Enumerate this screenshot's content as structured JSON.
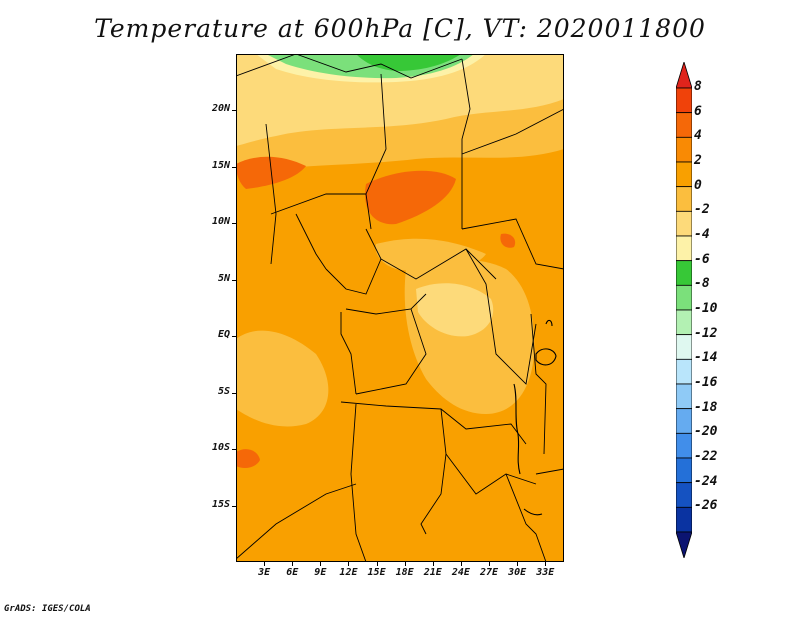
{
  "title": "Temperature at 600hPa [C], VT: 2020011800",
  "credit": "GrADS: IGES/COLA",
  "map": {
    "lon_range": [
      0,
      35
    ],
    "lat_range": [
      -20,
      25
    ],
    "y_ticks": [
      {
        "lat": 20,
        "label": "20N"
      },
      {
        "lat": 15,
        "label": "15N"
      },
      {
        "lat": 10,
        "label": "10N"
      },
      {
        "lat": 5,
        "label": "5N"
      },
      {
        "lat": 0,
        "label": "EQ"
      },
      {
        "lat": -5,
        "label": "5S"
      },
      {
        "lat": -10,
        "label": "10S"
      },
      {
        "lat": -15,
        "label": "15S"
      }
    ],
    "x_ticks": [
      {
        "lon": 3,
        "label": "3E"
      },
      {
        "lon": 6,
        "label": "6E"
      },
      {
        "lon": 9,
        "label": "9E"
      },
      {
        "lon": 12,
        "label": "12E"
      },
      {
        "lon": 15,
        "label": "15E"
      },
      {
        "lon": 18,
        "label": "18E"
      },
      {
        "lon": 21,
        "label": "21E"
      },
      {
        "lon": 24,
        "label": "24E"
      },
      {
        "lon": 27,
        "label": "27E"
      },
      {
        "lon": 30,
        "label": "30E"
      },
      {
        "lon": 33,
        "label": "33E"
      }
    ],
    "colors": {
      "c2to4": "#f9a000",
      "c0to2": "#fbbe3e",
      "cm2to0": "#fdda7a",
      "cm4tom2": "#fdf2a8",
      "cm6tom4": "#37c837",
      "cm8tom6": "#7be07b",
      "c4to6": "#f56808",
      "c6to8": "#e83c14"
    }
  },
  "colorbar": {
    "levels": [
      {
        "label": "8"
      },
      {
        "label": "6"
      },
      {
        "label": "4"
      },
      {
        "label": "2"
      },
      {
        "label": "0"
      },
      {
        "label": "-2"
      },
      {
        "label": "-4"
      },
      {
        "label": "-6"
      },
      {
        "label": "-8"
      },
      {
        "label": "-10"
      },
      {
        "label": "-12"
      },
      {
        "label": "-14"
      },
      {
        "label": "-16"
      },
      {
        "label": "-18"
      },
      {
        "label": "-20"
      },
      {
        "label": "-22"
      },
      {
        "label": "-24"
      },
      {
        "label": "-26"
      }
    ],
    "colors": [
      "#e0241c",
      "#f0420a",
      "#f56808",
      "#f98a04",
      "#f9a000",
      "#fbbe3e",
      "#fdda7a",
      "#fdf2a8",
      "#37c837",
      "#7be07b",
      "#b3f1b3",
      "#dff8f0",
      "#b9e5fb",
      "#8fcaf6",
      "#65abf0",
      "#418eea",
      "#2470d8",
      "#1552c1",
      "#0a33a1",
      "#0b1471"
    ]
  }
}
